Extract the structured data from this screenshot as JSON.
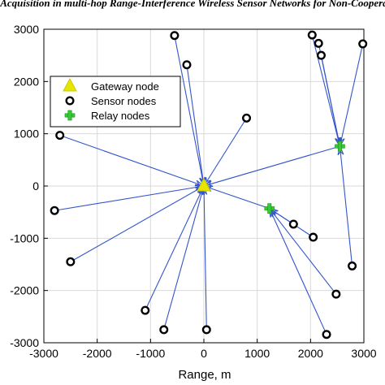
{
  "figure": {
    "title_fragment": "...y of Acquisition in multi-hop Range-Interference Wireless Sensor Networks for Non-Cooperative..."
  },
  "chart_data": {
    "type": "scatter",
    "xlabel": "Range, m",
    "ylabel": "",
    "xlim": [
      -3000,
      3000
    ],
    "ylim": [
      -3000,
      3000
    ],
    "xticks": [
      "-3000",
      "-2000",
      "-1000",
      "0",
      "1000",
      "2000",
      "3000"
    ],
    "yticks": [
      "3000",
      "2000",
      "1000",
      "0",
      "-1000",
      "-2000",
      "-3000"
    ],
    "xtick_values": [
      -3000,
      -2000,
      -1000,
      0,
      1000,
      2000,
      3000
    ],
    "ytick_values": [
      3000,
      2000,
      1000,
      0,
      -1000,
      -2000,
      -3000
    ],
    "grid": true,
    "legend_position": "upper-left",
    "colors": {
      "link": "#3355cc",
      "gateway": "#e6e600",
      "sensor": "#000000",
      "relay": "#33cc33"
    },
    "series": [
      {
        "name": "Gateway node",
        "marker": "triangle",
        "points": [
          [
            0,
            0
          ]
        ]
      },
      {
        "name": "Sensor nodes",
        "marker": "circle",
        "points": [
          [
            -550,
            2880
          ],
          [
            -320,
            2320
          ],
          [
            800,
            1300
          ],
          [
            -2700,
            970
          ],
          [
            -2800,
            -470
          ],
          [
            -2500,
            -1450
          ],
          [
            -1100,
            -2380
          ],
          [
            -750,
            -2750
          ],
          [
            50,
            -2750
          ],
          [
            2030,
            2890
          ],
          [
            2150,
            2730
          ],
          [
            2200,
            2500
          ],
          [
            2980,
            2720
          ],
          [
            1680,
            -730
          ],
          [
            2050,
            -980
          ],
          [
            2780,
            -1530
          ],
          [
            2480,
            -2070
          ],
          [
            2300,
            -2840
          ]
        ]
      },
      {
        "name": "Relay nodes",
        "marker": "plus",
        "points": [
          [
            2550,
            760
          ],
          [
            1230,
            -430
          ]
        ]
      }
    ],
    "links": [
      {
        "from": [
          -550,
          2880
        ],
        "to": [
          0,
          0
        ]
      },
      {
        "from": [
          -320,
          2320
        ],
        "to": [
          0,
          0
        ]
      },
      {
        "from": [
          800,
          1300
        ],
        "to": [
          0,
          0
        ]
      },
      {
        "from": [
          -2700,
          970
        ],
        "to": [
          0,
          0
        ]
      },
      {
        "from": [
          -2800,
          -470
        ],
        "to": [
          0,
          0
        ]
      },
      {
        "from": [
          -2500,
          -1450
        ],
        "to": [
          0,
          0
        ]
      },
      {
        "from": [
          -1100,
          -2380
        ],
        "to": [
          0,
          0
        ]
      },
      {
        "from": [
          -750,
          -2750
        ],
        "to": [
          0,
          0
        ]
      },
      {
        "from": [
          50,
          -2750
        ],
        "to": [
          0,
          0
        ]
      },
      {
        "from": [
          2030,
          2890
        ],
        "to": [
          2550,
          760
        ]
      },
      {
        "from": [
          2150,
          2730
        ],
        "to": [
          2550,
          760
        ]
      },
      {
        "from": [
          2200,
          2500
        ],
        "to": [
          2550,
          760
        ]
      },
      {
        "from": [
          2980,
          2720
        ],
        "to": [
          2550,
          760
        ]
      },
      {
        "from": [
          2780,
          -1530
        ],
        "to": [
          2550,
          760
        ]
      },
      {
        "from": [
          2550,
          760
        ],
        "to": [
          0,
          0
        ]
      },
      {
        "from": [
          1680,
          -730
        ],
        "to": [
          1230,
          -430
        ]
      },
      {
        "from": [
          2050,
          -980
        ],
        "to": [
          1230,
          -430
        ]
      },
      {
        "from": [
          2480,
          -2070
        ],
        "to": [
          1230,
          -430
        ]
      },
      {
        "from": [
          2300,
          -2840
        ],
        "to": [
          1230,
          -430
        ]
      },
      {
        "from": [
          1230,
          -430
        ],
        "to": [
          0,
          0
        ]
      }
    ]
  }
}
